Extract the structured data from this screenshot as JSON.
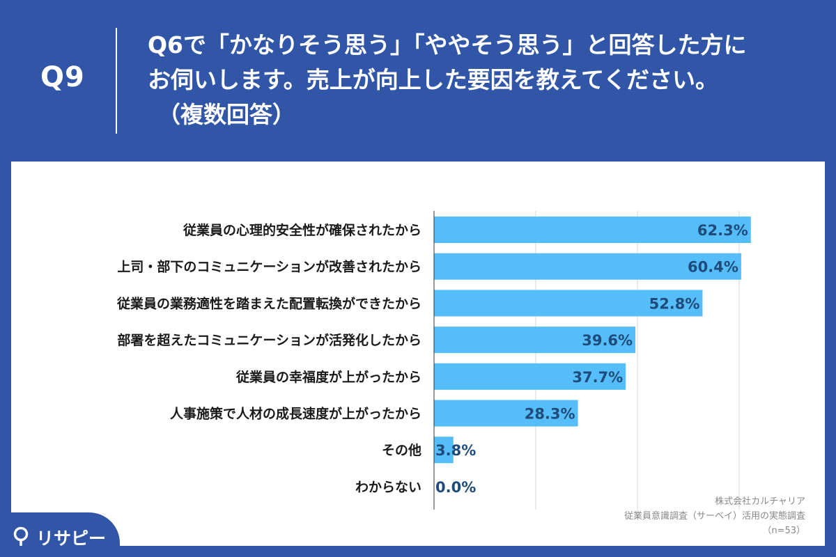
{
  "header": {
    "question_number": "Q9",
    "question_lines": [
      "Q6で「かなりそう思う」「ややそう思う」と回答した方に",
      "お伺いします。売上が向上した要因を教えてください。",
      "（複数回答）"
    ]
  },
  "chart_data": {
    "type": "bar",
    "orientation": "horizontal",
    "categories": [
      "従業員の心理的安全性が確保されたから",
      "上司・部下のコミュニケーションが改善されたから",
      "従業員の業務適性を踏まえた配置転換ができたから",
      "部署を超えたコミュニケーションが活発化したから",
      "従業員の幸福度が上がったから",
      "人事施策で人材の成長速度が上がったから",
      "その他",
      "わからない"
    ],
    "values": [
      62.3,
      60.4,
      52.8,
      39.6,
      37.7,
      28.3,
      3.8,
      0.0
    ],
    "labels": [
      "62.3%",
      "60.4%",
      "52.8%",
      "39.6%",
      "37.7%",
      "28.3%",
      "3.8%",
      "0.0%"
    ],
    "xlim": [
      0,
      70
    ],
    "gridlines": [
      20,
      40,
      60
    ],
    "grid": true,
    "bar_color": "#55bdf8"
  },
  "source": {
    "company": "株式会社カルチャリア",
    "survey": "従業員意識調査（サーベイ）活用の実態調査",
    "sample": "（n=53）"
  },
  "brand": {
    "logo_text": "リサピー",
    "logo_icon": "pin-icon"
  },
  "colors": {
    "background": "#3156a8",
    "panel": "#ffffff",
    "bar": "#55bdf8",
    "value_label": "#1f4b7a"
  }
}
